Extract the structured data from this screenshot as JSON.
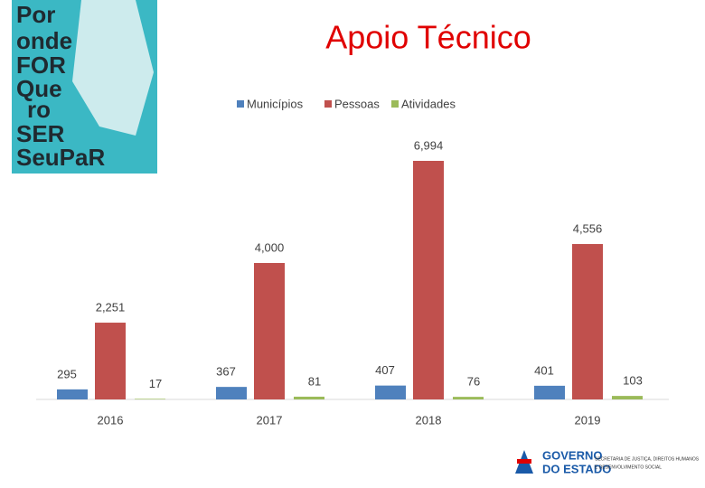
{
  "poster_text": [
    "Por",
    "onde",
    "FOR",
    "Que",
    "ro",
    "SER",
    "SeuPaR"
  ],
  "logo_text": [
    "GOVERNO",
    "DO ESTADO"
  ],
  "logo_subtext": [
    "SECRETARIA DE JUSTIÇA, DIREITOS HUMANOS",
    "E DESENVOLVIMENTO SOCIAL"
  ],
  "chart_data": {
    "type": "bar",
    "title": "Apoio Técnico",
    "categories": [
      "2016",
      "2017",
      "2018",
      "2019"
    ],
    "series": [
      {
        "name": "Municípios",
        "color": "#4f81bd",
        "values": [
          295,
          367,
          407,
          401
        ]
      },
      {
        "name": "Pessoas",
        "color": "#c0504d",
        "values": [
          2251,
          4000,
          6994,
          4556
        ],
        "value_labels": [
          "2,251",
          "4,000",
          "6,994",
          "4,556"
        ]
      },
      {
        "name": "Atividades",
        "color": "#9bbb59",
        "values": [
          17,
          81,
          76,
          103
        ]
      }
    ]
  }
}
